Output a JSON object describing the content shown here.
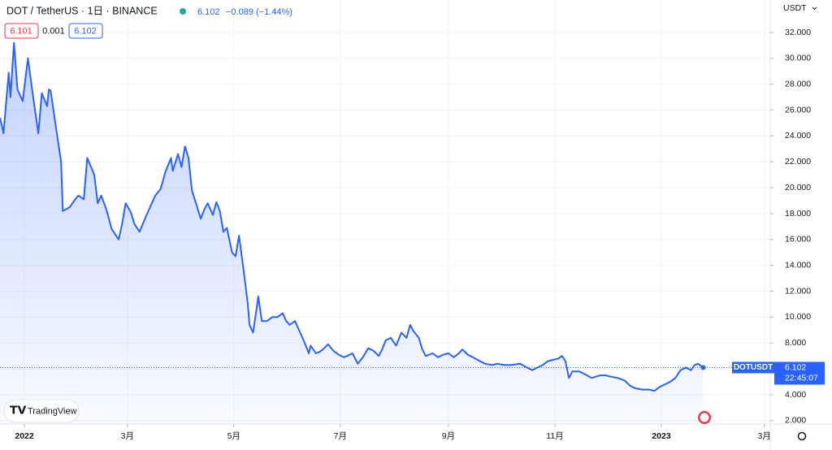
{
  "chart_data": {
    "type": "area",
    "title": "DOT / TetherUS · 1日 · BINANCE",
    "last_price": 6.102,
    "change": "−0.089 (−1.44%)",
    "bid": "6.101",
    "spread": "0.001",
    "ask": "6.102",
    "currency": "USDT",
    "symbol": "DOTUSDT",
    "countdown": "22:45:07",
    "logo": "TradingView",
    "color": "#2962ff",
    "grid": true,
    "x": [
      -14,
      -12,
      -9,
      -8,
      -6,
      -4,
      -1,
      2,
      5,
      8,
      10,
      13,
      14,
      15,
      19,
      21,
      22,
      26,
      29,
      31,
      34,
      36,
      40,
      42,
      44,
      47,
      50,
      54,
      56,
      58,
      61,
      63,
      66,
      69,
      72,
      75,
      78,
      81,
      84,
      85,
      88,
      90,
      92,
      94,
      96,
      99,
      101,
      103,
      105,
      108,
      110,
      112,
      114,
      116,
      119,
      121,
      123,
      126,
      128,
      129,
      131,
      133,
      134,
      136,
      139,
      142,
      145,
      148,
      150,
      152,
      155,
      157,
      160,
      163,
      164,
      167,
      169,
      171,
      174,
      177,
      180,
      183,
      185,
      188,
      191,
      194,
      197,
      200,
      203,
      205,
      207,
      210,
      213,
      216,
      219,
      221,
      223,
      226,
      228,
      230,
      234,
      237,
      240,
      243,
      246,
      249,
      251,
      254,
      257,
      261,
      264,
      268,
      271,
      275,
      279,
      284,
      288,
      291,
      294,
      297,
      300,
      303,
      306,
      308,
      310,
      312,
      314,
      318,
      321,
      325,
      330,
      333,
      336,
      340,
      344,
      347,
      350,
      354,
      358,
      361,
      364,
      367,
      370,
      373,
      376,
      379,
      382,
      384,
      386,
      389
    ],
    "y": [
      25.4,
      24.2,
      28.9,
      27.0,
      31.2,
      27.6,
      26.7,
      30.0,
      27.0,
      24.2,
      27.3,
      26.3,
      27.6,
      27.5,
      23.8,
      22.0,
      18.2,
      18.5,
      19.1,
      19.4,
      19.1,
      22.3,
      21.0,
      18.8,
      19.4,
      18.3,
      16.8,
      16.0,
      17.2,
      18.8,
      18.1,
      17.2,
      16.6,
      17.6,
      18.5,
      19.4,
      19.9,
      21.3,
      22.3,
      21.3,
      22.6,
      21.6,
      23.2,
      22.3,
      19.8,
      18.5,
      17.6,
      18.3,
      18.8,
      17.9,
      18.9,
      18.2,
      16.6,
      16.9,
      15.0,
      14.7,
      16.3,
      13.2,
      11.0,
      9.4,
      8.8,
      10.6,
      11.6,
      9.7,
      9.7,
      10.0,
      10.0,
      10.3,
      9.7,
      9.4,
      9.7,
      9.1,
      8.2,
      7.2,
      7.8,
      7.2,
      7.3,
      7.5,
      7.9,
      7.4,
      7.1,
      6.9,
      7.0,
      7.2,
      6.4,
      6.9,
      7.6,
      7.4,
      7.0,
      7.5,
      8.2,
      8.4,
      7.8,
      8.8,
      8.4,
      9.4,
      8.9,
      8.4,
      7.5,
      7.0,
      7.2,
      6.9,
      7.1,
      7.2,
      6.9,
      7.2,
      7.5,
      7.1,
      6.9,
      6.6,
      6.4,
      6.3,
      6.4,
      6.3,
      6.3,
      6.4,
      6.1,
      5.9,
      6.1,
      6.3,
      6.6,
      6.7,
      6.8,
      7.0,
      6.6,
      5.3,
      5.8,
      5.8,
      5.6,
      5.3,
      5.5,
      5.5,
      5.4,
      5.3,
      5.1,
      4.7,
      4.5,
      4.4,
      4.4,
      4.3,
      4.6,
      4.8,
      5.0,
      5.3,
      5.9,
      6.1,
      5.9,
      6.3,
      6.4,
      6.102
    ],
    "xlim": [
      -14,
      427.4
    ],
    "ylim": [
      1.74,
      34.51
    ],
    "xticks": [
      {
        "value": 0,
        "label": "2022"
      },
      {
        "value": 59,
        "label": "3月"
      },
      {
        "value": 120,
        "label": "5月"
      },
      {
        "value": 181,
        "label": "7月"
      },
      {
        "value": 243,
        "label": "9月"
      },
      {
        "value": 304,
        "label": "11月"
      },
      {
        "value": 365,
        "label": "2023"
      },
      {
        "value": 424,
        "label": "3月"
      }
    ],
    "yticks": [
      {
        "value": 2,
        "label": "2.000"
      },
      {
        "value": 4,
        "label": "4.000"
      },
      {
        "value": 6,
        "label": "6.000"
      },
      {
        "value": 8,
        "label": "8.000"
      },
      {
        "value": 10,
        "label": "10.000"
      },
      {
        "value": 12,
        "label": "12.000"
      },
      {
        "value": 14,
        "label": "14.000"
      },
      {
        "value": 16,
        "label": "16.000"
      },
      {
        "value": 18,
        "label": "18.000"
      },
      {
        "value": 20,
        "label": "20.000"
      },
      {
        "value": 22,
        "label": "22.000"
      },
      {
        "value": 24,
        "label": "24.000"
      },
      {
        "value": 26,
        "label": "26.000"
      },
      {
        "value": 28,
        "label": "28.000"
      },
      {
        "value": 30,
        "label": "30.000"
      },
      {
        "value": 32,
        "label": "32.000"
      }
    ]
  }
}
